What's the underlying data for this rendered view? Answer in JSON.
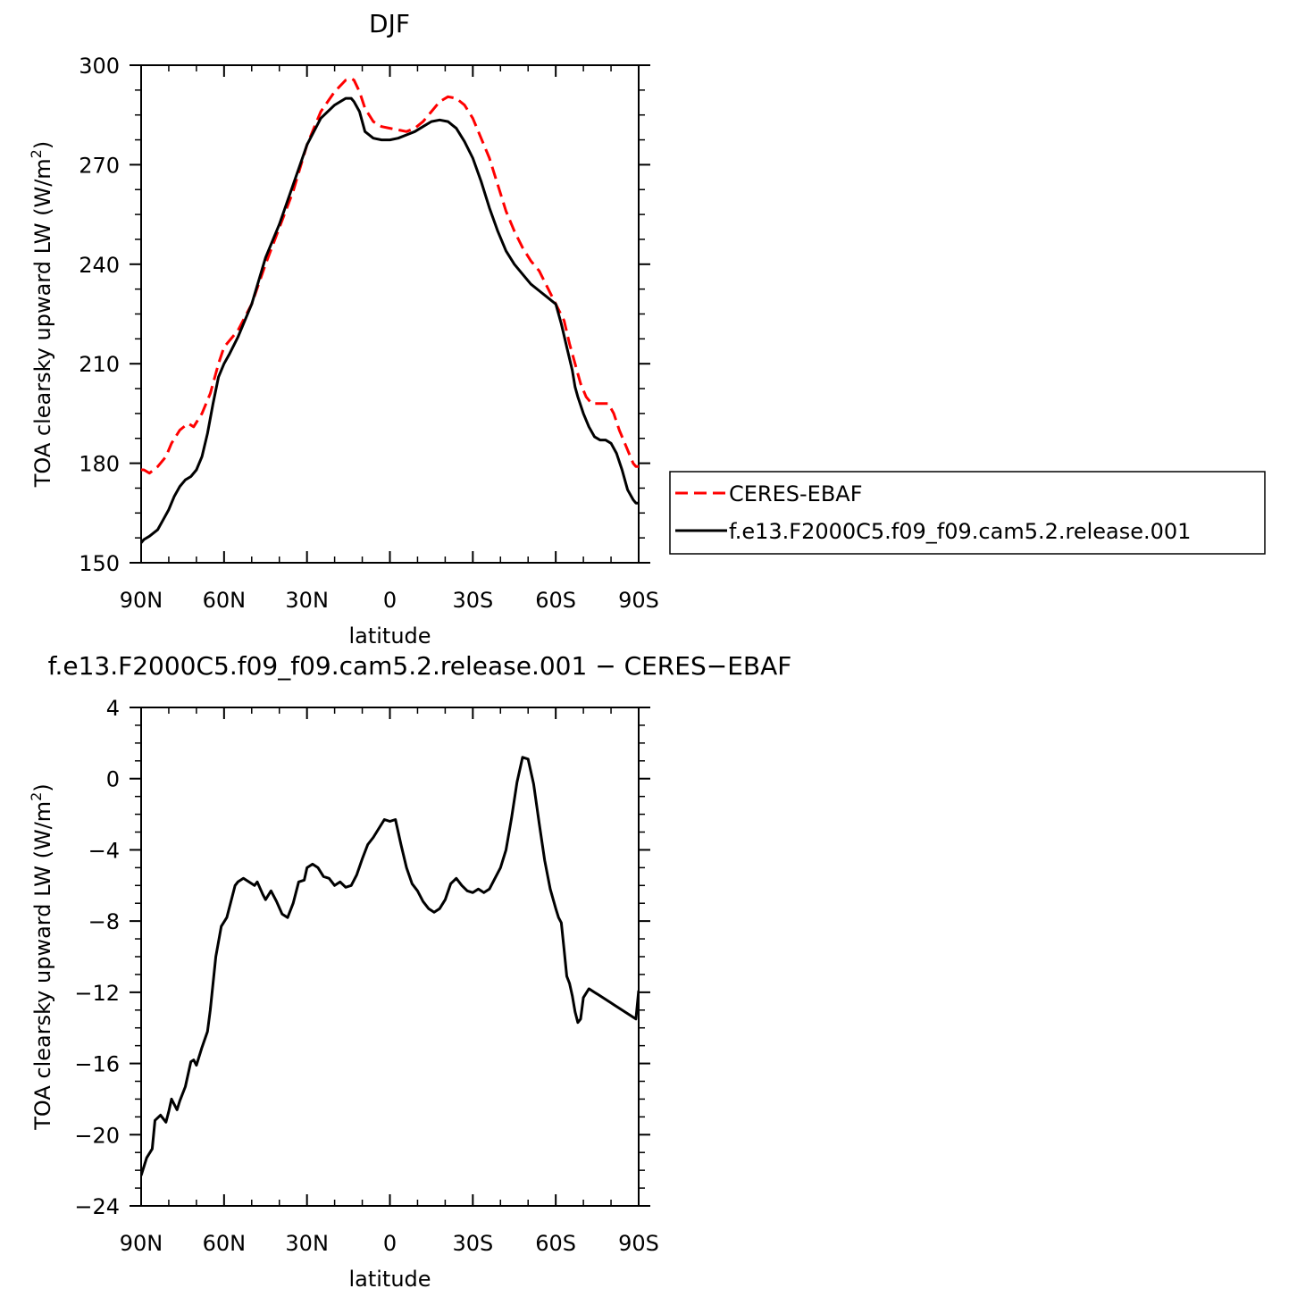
{
  "colors": {
    "obs": "#ff0000",
    "model": "#000000",
    "axis": "#000000",
    "background": "#ffffff"
  },
  "chart_data": [
    {
      "type": "line",
      "title": "DJF",
      "xlabel": "latitude",
      "ylabel": "TOA clearsky upward LW (W/m²)",
      "ylabel_parts": {
        "main": "TOA clearsky upward LW (W/m",
        "sup": "2",
        "end": ")"
      },
      "xlim": [
        90,
        -90
      ],
      "ylim": [
        150,
        300
      ],
      "xticks": [
        90,
        60,
        30,
        0,
        -30,
        -60,
        -90
      ],
      "xtick_labels": [
        "90N",
        "60N",
        "30N",
        "0",
        "30S",
        "60S",
        "90S"
      ],
      "yticks": [
        150,
        180,
        210,
        240,
        270,
        300
      ],
      "ytick_labels": [
        "150",
        "180",
        "210",
        "240",
        "270",
        "300"
      ],
      "legend": {
        "position": "right"
      },
      "series": [
        {
          "name": "CERES-EBAF",
          "color": "#ff0000",
          "dash": "dashed",
          "x": [
            90,
            89,
            87,
            84,
            81,
            79,
            76,
            73,
            71,
            68,
            65,
            62,
            60,
            58,
            55,
            50,
            45,
            40,
            35,
            30,
            25,
            20,
            16,
            14,
            13,
            11,
            9,
            6,
            3,
            0,
            -3,
            -6,
            -9,
            -12,
            -15,
            -18,
            -21,
            -24,
            -27,
            -30,
            -33,
            -36,
            -39,
            -42,
            -45,
            -48,
            -51,
            -54,
            -57,
            -60,
            -63,
            -65,
            -67,
            -69,
            -71,
            -73,
            -75,
            -77,
            -79,
            -81,
            -83,
            -85,
            -87,
            -88,
            -89,
            -90
          ],
          "values": [
            178,
            178,
            177,
            179,
            182,
            186,
            190,
            192,
            191,
            195,
            201,
            210,
            215,
            217,
            220,
            228,
            240,
            251,
            262,
            276,
            286,
            292,
            295.5,
            296,
            295.5,
            292,
            287,
            283,
            281.5,
            281,
            280.5,
            280,
            281,
            283,
            286,
            289,
            290.5,
            290,
            288,
            284,
            278,
            272,
            264,
            256,
            250,
            245,
            241,
            238,
            233,
            228,
            223,
            216,
            210,
            204,
            200,
            198,
            198,
            198,
            198,
            195,
            190,
            186,
            182,
            180,
            179,
            179
          ]
        },
        {
          "name": "f.e13.F2000C5.f09_f09.cam5.2.release.001",
          "color": "#000000",
          "dash": "solid",
          "x": [
            90,
            89,
            87,
            84,
            82,
            80,
            78,
            76,
            74,
            72,
            70,
            68,
            66,
            64,
            62,
            60,
            58,
            55,
            50,
            45,
            40,
            35,
            30,
            25,
            20,
            16,
            14,
            13,
            11,
            9,
            6,
            3,
            0,
            -3,
            -6,
            -9,
            -12,
            -15,
            -18,
            -21,
            -24,
            -27,
            -30,
            -33,
            -36,
            -39,
            -42,
            -45,
            -48,
            -51,
            -54,
            -57,
            -60,
            -62,
            -64,
            -66,
            -67,
            -68,
            -70,
            -72,
            -74,
            -76,
            -78,
            -80,
            -82,
            -84,
            -86,
            -88,
            -89,
            -90
          ],
          "values": [
            156,
            157,
            158,
            160,
            163,
            166,
            170,
            173,
            175,
            176,
            178,
            182,
            189,
            198,
            206,
            210,
            213,
            218,
            228,
            242,
            252,
            264,
            276,
            284,
            288,
            290,
            290,
            289,
            286,
            280,
            278,
            277.5,
            277.5,
            278,
            279,
            280,
            281.5,
            283,
            283.5,
            283,
            281,
            277,
            272,
            265,
            257,
            250,
            244,
            240,
            237,
            234,
            232,
            230,
            228,
            222,
            215,
            208,
            203,
            200,
            195,
            191,
            188,
            187,
            187,
            186,
            183,
            178,
            172,
            169,
            168,
            168
          ]
        }
      ]
    },
    {
      "type": "line",
      "title": "f.e13.F2000C5.f09_f09.cam5.2.release.001 − CERES−EBAF",
      "xlabel": "latitude",
      "ylabel": "TOA clearsky upward LW (W/m²)",
      "ylabel_parts": {
        "main": "TOA clearsky upward LW (W/m",
        "sup": "2",
        "end": ")"
      },
      "xlim": [
        90,
        -90
      ],
      "ylim": [
        -24,
        4
      ],
      "xticks": [
        90,
        60,
        30,
        0,
        -30,
        -60,
        -90
      ],
      "xtick_labels": [
        "90N",
        "60N",
        "30N",
        "0",
        "30S",
        "60S",
        "90S"
      ],
      "yticks": [
        -24,
        -20,
        -16,
        -12,
        -8,
        -4,
        0,
        4
      ],
      "ytick_labels": [
        "−24",
        "−20",
        "−16",
        "−12",
        "−8",
        "−4",
        "0",
        "4"
      ],
      "series": [
        {
          "color": "#000000",
          "dash": "solid",
          "x": [
            90,
            88,
            86,
            85,
            83,
            81,
            80,
            79,
            77,
            76,
            74,
            72,
            71,
            70,
            68,
            66,
            65,
            63,
            61,
            59,
            58,
            56,
            55,
            53,
            51,
            49,
            48,
            46,
            45,
            43,
            41,
            39,
            37,
            35,
            33,
            31,
            30,
            28,
            26,
            24,
            22,
            20,
            18,
            16,
            14,
            12,
            10,
            8,
            6,
            4,
            2,
            0,
            -2,
            -4,
            -6,
            -8,
            -10,
            -12,
            -14,
            -16,
            -18,
            -20,
            -22,
            -24,
            -26,
            -28,
            -30,
            -32,
            -34,
            -36,
            -38,
            -40,
            -42,
            -44,
            -46,
            -48,
            -50,
            -52,
            -54,
            -56,
            -58,
            -60,
            -61,
            -62,
            -63,
            -64,
            -65,
            -66,
            -67,
            -68,
            -69,
            -70,
            -72,
            -74,
            -75,
            -76,
            -77,
            -78,
            -79,
            -80,
            -81,
            -82,
            -83,
            -84,
            -85,
            -86,
            -87,
            -88,
            -89,
            -90
          ],
          "values": [
            -22.3,
            -21.3,
            -20.8,
            -19.2,
            -18.9,
            -19.3,
            -18.7,
            -18.0,
            -18.6,
            -18.1,
            -17.3,
            -15.9,
            -15.8,
            -16.1,
            -15.1,
            -14.2,
            -13.0,
            -10.0,
            -8.3,
            -7.8,
            -7.2,
            -6.0,
            -5.8,
            -5.6,
            -5.8,
            -6.0,
            -5.8,
            -6.5,
            -6.8,
            -6.3,
            -6.9,
            -7.6,
            -7.8,
            -7.0,
            -5.8,
            -5.7,
            -5.0,
            -4.8,
            -5.0,
            -5.5,
            -5.6,
            -6.0,
            -5.8,
            -6.1,
            -6.0,
            -5.4,
            -4.5,
            -3.7,
            -3.3,
            -2.8,
            -2.3,
            -2.4,
            -2.3,
            -3.7,
            -5.0,
            -5.9,
            -6.3,
            -6.9,
            -7.3,
            -7.5,
            -7.3,
            -6.8,
            -5.9,
            -5.6,
            -6.0,
            -6.3,
            -6.4,
            -6.2,
            -6.4,
            -6.2,
            -5.6,
            -5.0,
            -4.0,
            -2.2,
            -0.2,
            1.2,
            1.1,
            -0.3,
            -2.5,
            -4.6,
            -6.2,
            -7.3,
            -7.8,
            -8.1,
            -9.6,
            -11.1,
            -11.5,
            -12.2,
            -13.1,
            -13.7,
            -13.5,
            -12.3,
            -11.8,
            -12.0,
            -12.1,
            -12.2,
            -12.3,
            -12.4,
            -12.5,
            -12.6,
            -12.7,
            -12.8,
            -12.9,
            -13.0,
            -13.1,
            -13.2,
            -13.3,
            -13.4,
            -13.5,
            -11.9
          ]
        }
      ]
    }
  ]
}
